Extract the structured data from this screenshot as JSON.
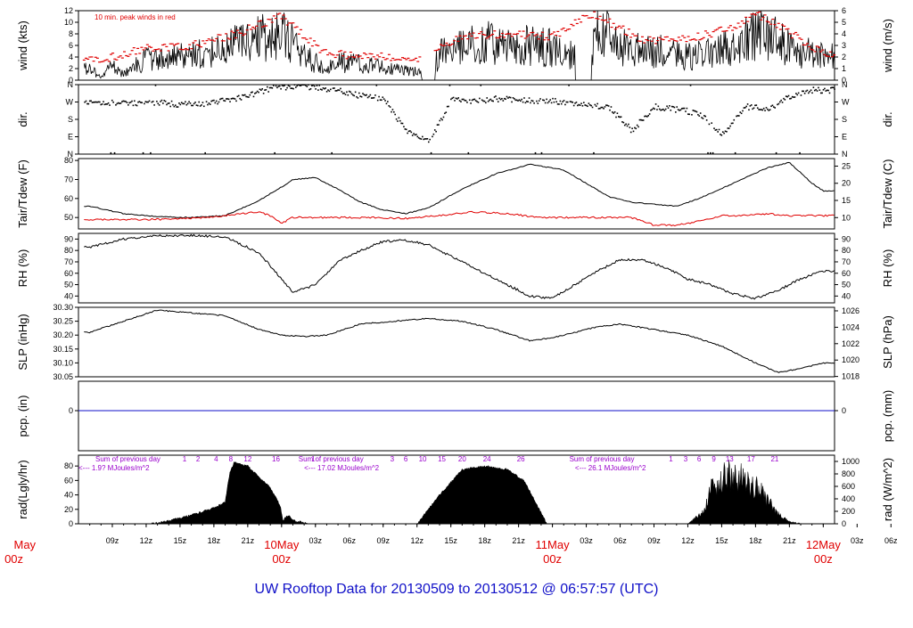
{
  "title": "UW Rooftop Data for 20130509  to  20130512 @ 06:57:57  (UTC)",
  "colors": {
    "title": "#1010c8",
    "peak": "#e00000",
    "dew": "#e00000",
    "purple": "#9900cc",
    "pcp": "#1010c8",
    "day": "#e00000"
  },
  "x_axis": {
    "hour_ticks": [
      "09z",
      "12z",
      "15z",
      "18z",
      "21z",
      "00z",
      "03z",
      "06z",
      "09z",
      "12z",
      "15z",
      "18z",
      "21z",
      "00z",
      "03z",
      "06z",
      "09z",
      "12z",
      "15z",
      "18z",
      "21z",
      "00z",
      "03z",
      "06z"
    ],
    "day_labels": [
      {
        "day": "May",
        "hour": "00z"
      },
      {
        "day": "10May",
        "hour": "00z"
      },
      {
        "day": "11May",
        "hour": "00z"
      },
      {
        "day": "12May",
        "hour": "00z"
      }
    ]
  },
  "chart_data": [
    {
      "type": "line",
      "id": "wind",
      "ylabel_left": "wind (kts)",
      "ylabel_right": "wind (m/s)",
      "ylim_left": [
        0,
        12
      ],
      "ylim_right": [
        0,
        6
      ],
      "yticks_left": [
        "0",
        "2",
        "4",
        "6",
        "8",
        "10",
        "12"
      ],
      "yticks_right": [
        "0",
        "1",
        "2",
        "3",
        "4",
        "5",
        "6"
      ],
      "annotation": "10 min. peak winds in red",
      "series": [
        {
          "name": "wind speed",
          "x": [
            7,
            8,
            9,
            10,
            11,
            12,
            14,
            16,
            18,
            20,
            22,
            24,
            25,
            26,
            27,
            28,
            29,
            30,
            32,
            34,
            36,
            37,
            38,
            40,
            42,
            44,
            46,
            48,
            50,
            51,
            52,
            54,
            56,
            58,
            60,
            62,
            64,
            66,
            68,
            70,
            72
          ],
          "y": [
            2,
            0.5,
            2.5,
            1,
            2.8,
            3.5,
            4,
            4.5,
            5,
            6,
            7,
            8,
            6,
            4,
            3,
            2.5,
            3,
            3,
            2.5,
            2,
            1.5,
            0.5,
            4.5,
            5.5,
            6.5,
            6,
            6,
            5.5,
            4,
            1,
            9,
            6,
            5,
            5,
            4,
            5,
            6,
            8,
            7,
            5,
            4
          ]
        },
        {
          "name": "10 min. peak winds",
          "x": [
            8,
            12,
            16,
            20,
            24,
            28,
            32,
            36,
            40,
            44,
            48,
            51.5,
            56,
            60,
            64,
            66,
            68,
            72
          ],
          "y": [
            3.5,
            5.5,
            6,
            8,
            11,
            4.5,
            4.2,
            3.8,
            7.5,
            8,
            7.5,
            11.5,
            7,
            7,
            9,
            11.5,
            9.5,
            4.5
          ]
        }
      ]
    },
    {
      "type": "scatter",
      "id": "dir",
      "ylabel_left": "dir.",
      "ylabel_right": "dir.",
      "yticks_left": [
        "N",
        "E",
        "S",
        "W",
        "N"
      ],
      "yticks_right": [
        "N",
        "E",
        "S",
        "W",
        "N"
      ],
      "ylim": [
        0,
        360
      ],
      "series": [
        {
          "name": "wind direction",
          "x": [
            7,
            9,
            11,
            13,
            15,
            17,
            19,
            21,
            23,
            25,
            27,
            29,
            31,
            33,
            35,
            37,
            39,
            41,
            43,
            45,
            47,
            49,
            51,
            53,
            55,
            57,
            59,
            61,
            63,
            65,
            67,
            69,
            71
          ],
          "y": [
            270,
            265,
            260,
            268,
            255,
            260,
            275,
            300,
            340,
            350,
            345,
            330,
            300,
            285,
            120,
            60,
            280,
            270,
            285,
            280,
            275,
            270,
            250,
            240,
            120,
            245,
            230,
            210,
            100,
            245,
            230,
            300,
            330
          ]
        }
      ]
    },
    {
      "type": "line",
      "id": "temp",
      "ylabel_left": "Tair/Tdew (F)",
      "ylabel_right": "Tair/Tdew (C)",
      "ylim_left": [
        44,
        81
      ],
      "ylim_right": [
        6.7,
        27.2
      ],
      "yticks_left": [
        "50",
        "60",
        "70",
        "80"
      ],
      "yticks_right": [
        "10",
        "15",
        "20",
        "25"
      ],
      "series": [
        {
          "name": "Tair",
          "x": [
            7,
            10,
            13,
            16,
            19,
            22,
            24,
            25,
            27,
            29,
            31,
            33,
            35,
            37,
            40,
            43,
            46,
            49,
            51,
            53,
            55,
            57,
            59,
            61,
            64,
            67,
            69,
            71,
            72
          ],
          "y": [
            56,
            52,
            50.5,
            50,
            51,
            59,
            66,
            70,
            71,
            65,
            58,
            54,
            52,
            55,
            65,
            73,
            78,
            75,
            68,
            61,
            58,
            57,
            56,
            60,
            68,
            76,
            79,
            68,
            64
          ]
        },
        {
          "name": "Tdew",
          "x": [
            7,
            10,
            13,
            16,
            19,
            21,
            22,
            23,
            24,
            25,
            26,
            29,
            32,
            35,
            38,
            41,
            44,
            47,
            50,
            53,
            55,
            57,
            59,
            61,
            63,
            65,
            67,
            69,
            72
          ],
          "y": [
            49,
            49,
            49,
            49.5,
            51,
            52.5,
            53,
            51,
            47,
            50,
            50,
            50,
            50,
            49.5,
            51,
            53,
            52,
            50,
            50,
            50,
            50,
            46,
            46,
            48,
            51,
            51,
            52,
            51,
            51
          ]
        }
      ]
    },
    {
      "type": "line",
      "id": "rh",
      "ylabel_left": "RH (%)",
      "ylabel_right": "RH (%)",
      "ylim": [
        34,
        95
      ],
      "yticks_left": [
        "40",
        "50",
        "60",
        "70",
        "80",
        "90"
      ],
      "yticks_right": [
        "40",
        "50",
        "60",
        "70",
        "80",
        "90"
      ],
      "series": [
        {
          "name": "RH",
          "x": [
            7,
            10,
            13,
            16,
            19,
            22,
            24,
            25,
            27,
            29,
            31,
            33,
            35,
            37,
            40,
            43,
            46,
            48,
            50,
            52,
            54,
            56,
            58,
            60,
            62,
            64,
            66,
            68,
            70,
            72
          ],
          "y": [
            83,
            90,
            93,
            93,
            92,
            78,
            55,
            43,
            50,
            70,
            80,
            88,
            89,
            85,
            70,
            55,
            40,
            38,
            50,
            62,
            72,
            72,
            65,
            55,
            50,
            42,
            38,
            45,
            55,
            62
          ]
        }
      ]
    },
    {
      "type": "line",
      "id": "slp",
      "ylabel_left": "SLP (inHg)",
      "ylabel_right": "SLP (hPa)",
      "ylim_left": [
        30.05,
        30.3
      ],
      "ylim_right": [
        1017.96,
        1026.43
      ],
      "yticks_left": [
        "30.05",
        "30.10",
        "30.15",
        "30.20",
        "30.25",
        "30.30"
      ],
      "yticks_right": [
        "1018",
        "1020",
        "1022",
        "1024",
        "1026"
      ],
      "series": [
        {
          "name": "SLP",
          "x": [
            7,
            10,
            13,
            16,
            19,
            22,
            24,
            26,
            28,
            31,
            34,
            37,
            40,
            43,
            46,
            48,
            50,
            52,
            54,
            57,
            60,
            63,
            66,
            68,
            70,
            72
          ],
          "y": [
            30.21,
            30.25,
            30.29,
            30.28,
            30.27,
            30.22,
            30.2,
            30.195,
            30.2,
            30.24,
            30.25,
            30.26,
            30.25,
            30.22,
            30.18,
            30.19,
            30.21,
            30.23,
            30.24,
            30.22,
            30.2,
            30.16,
            30.1,
            30.065,
            30.08,
            30.1
          ]
        }
      ]
    },
    {
      "type": "line",
      "id": "pcp",
      "ylabel_left": "pcp. (in)",
      "ylabel_right": "pcp. (mm)",
      "yticks_left": [
        "0"
      ],
      "yticks_right": [
        "0"
      ],
      "series": [
        {
          "name": "pcp",
          "x": [
            7,
            72
          ],
          "y": [
            0,
            0
          ]
        }
      ]
    },
    {
      "type": "area",
      "id": "rad",
      "ylabel_left": "rad(Lgly/hr)",
      "ylabel_right": "rad (W/m^2)",
      "ylim_left": [
        0,
        95
      ],
      "ylim_right": [
        0,
        1100
      ],
      "yticks_left": [
        "0",
        "20",
        "40",
        "60",
        "80"
      ],
      "yticks_right": [
        "0",
        "200",
        "400",
        "600",
        "800",
        "1000"
      ],
      "annotations": [
        {
          "text": "Sum of previous day",
          "x": 7.5,
          "row": 1
        },
        {
          "text": "<--- 1.9? MJoules/m^2",
          "x": 6,
          "row": 2
        },
        {
          "text": "Sum of previous day",
          "x": 25.5,
          "row": 1
        },
        {
          "text": "<--- 17.02 MJoules/m^2",
          "x": 26,
          "row": 2
        },
        {
          "text": "Sum of previous day",
          "x": 49.5,
          "row": 1
        },
        {
          "text": "<--- 26.1 MJoules/m^2",
          "x": 50,
          "row": 2
        }
      ],
      "header_numbers": [
        {
          "text": "1",
          "x": 15.4
        },
        {
          "text": "2",
          "x": 16.6
        },
        {
          "text": "4",
          "x": 18.2
        },
        {
          "text": "8",
          "x": 19.5
        },
        {
          "text": "12",
          "x": 21
        },
        {
          "text": "16",
          "x": 23.5
        },
        {
          "text": "1",
          "x": 26.8
        },
        {
          "text": "3",
          "x": 33.8
        },
        {
          "text": "6",
          "x": 35
        },
        {
          "text": "10",
          "x": 36.5
        },
        {
          "text": "15",
          "x": 38.2
        },
        {
          "text": "20",
          "x": 40
        },
        {
          "text": "24",
          "x": 42.2
        },
        {
          "text": "26",
          "x": 45.2
        },
        {
          "text": "1",
          "x": 58.5
        },
        {
          "text": "3",
          "x": 59.8
        },
        {
          "text": "6",
          "x": 61
        },
        {
          "text": "9",
          "x": 62.3
        },
        {
          "text": "13",
          "x": 63.7
        },
        {
          "text": "17",
          "x": 65.6
        },
        {
          "text": "21",
          "x": 67.7
        }
      ],
      "series": [
        {
          "name": "radiation",
          "x": [
            12.4,
            14,
            16,
            18,
            19,
            19.4,
            19.8,
            21,
            22,
            23,
            23.9,
            24.1,
            24.6,
            25,
            26.3,
            36,
            38,
            40,
            42,
            44,
            45.5,
            47.5,
            60,
            61.5,
            62,
            63,
            63.5,
            64,
            65,
            66,
            67,
            68,
            69,
            70
          ],
          "y": [
            0,
            4,
            12,
            22,
            30,
            70,
            85,
            80,
            65,
            50,
            25,
            5,
            12,
            5,
            0,
            0,
            40,
            75,
            80,
            75,
            60,
            0,
            0,
            20,
            55,
            65,
            85,
            70,
            75,
            60,
            40,
            15,
            3,
            0
          ]
        }
      ]
    }
  ]
}
